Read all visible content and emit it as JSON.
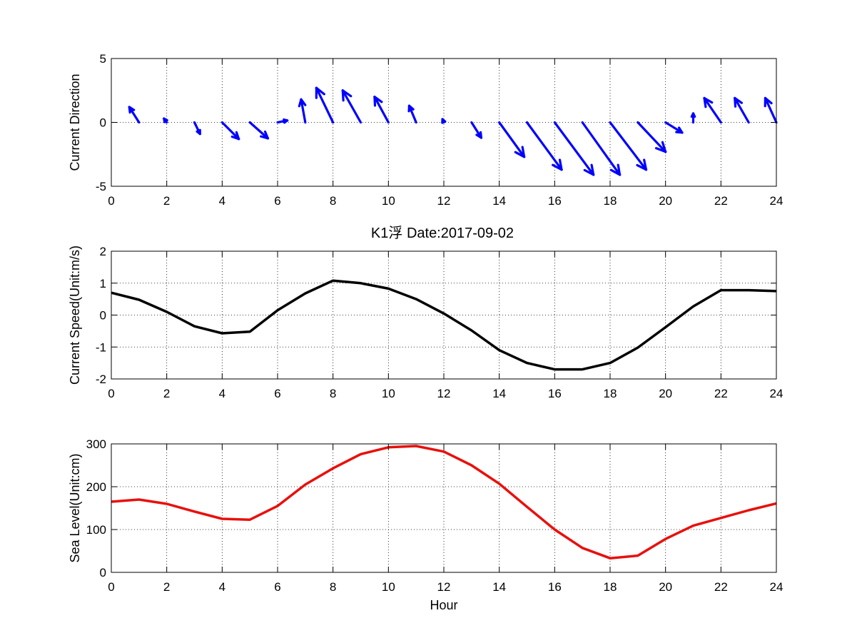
{
  "figure": {
    "title": "K1浮   Date:2017-09-02",
    "title_color": "#e8201c"
  },
  "chart_data": [
    {
      "type": "quiver",
      "ylabel": "Current Direction",
      "xlabel": "",
      "xlim": [
        0,
        24
      ],
      "ylim": [
        -5,
        5
      ],
      "xticks": [
        0,
        2,
        4,
        6,
        8,
        10,
        12,
        14,
        16,
        18,
        20,
        22,
        24
      ],
      "yticks": [
        -5,
        0,
        5
      ],
      "grid": true,
      "color": "#0000ff",
      "vectors": [
        {
          "x": 1,
          "u": -0.35,
          "v": 1.2
        },
        {
          "x": 2,
          "u": -0.1,
          "v": 0.3
        },
        {
          "x": 3,
          "u": 0.2,
          "v": -0.9
        },
        {
          "x": 4,
          "u": 0.6,
          "v": -1.3
        },
        {
          "x": 5,
          "u": 0.65,
          "v": -1.25
        },
        {
          "x": 6,
          "u": 0.35,
          "v": 0.15
        },
        {
          "x": 7,
          "u": -0.15,
          "v": 1.8
        },
        {
          "x": 8,
          "u": -0.6,
          "v": 2.7
        },
        {
          "x": 9,
          "u": -0.65,
          "v": 2.5
        },
        {
          "x": 10,
          "u": -0.5,
          "v": 2.0
        },
        {
          "x": 11,
          "u": -0.25,
          "v": 1.3
        },
        {
          "x": 12,
          "u": -0.05,
          "v": 0.25
        },
        {
          "x": 13,
          "u": 0.35,
          "v": -1.2
        },
        {
          "x": 14,
          "u": 0.9,
          "v": -2.7
        },
        {
          "x": 15,
          "u": 1.25,
          "v": -3.7
        },
        {
          "x": 16,
          "u": 1.4,
          "v": -4.1
        },
        {
          "x": 17,
          "u": 1.35,
          "v": -4.1
        },
        {
          "x": 18,
          "u": 1.3,
          "v": -3.7
        },
        {
          "x": 19,
          "u": 1.0,
          "v": -2.3
        },
        {
          "x": 20,
          "u": 0.6,
          "v": -0.8
        },
        {
          "x": 21,
          "u": 0.0,
          "v": 0.7
        },
        {
          "x": 22,
          "u": -0.6,
          "v": 1.9
        },
        {
          "x": 23,
          "u": -0.5,
          "v": 1.9
        },
        {
          "x": 24,
          "u": -0.4,
          "v": 1.9
        }
      ]
    },
    {
      "type": "line",
      "ylabel": "Current Speed(Unit:m/s)",
      "xlabel": "",
      "xlim": [
        0,
        24
      ],
      "ylim": [
        -2,
        2
      ],
      "xticks": [
        0,
        2,
        4,
        6,
        8,
        10,
        12,
        14,
        16,
        18,
        20,
        22,
        24
      ],
      "yticks": [
        -2,
        -1,
        0,
        1,
        2
      ],
      "grid": true,
      "color": "#000000",
      "x": [
        0,
        1,
        2,
        3,
        4,
        5,
        6,
        7,
        8,
        9,
        10,
        11,
        12,
        13,
        14,
        15,
        16,
        17,
        18,
        19,
        20,
        21,
        22,
        23,
        24
      ],
      "y": [
        0.7,
        0.48,
        0.1,
        -0.35,
        -0.57,
        -0.52,
        0.15,
        0.68,
        1.08,
        1.0,
        0.83,
        0.5,
        0.05,
        -0.48,
        -1.1,
        -1.5,
        -1.7,
        -1.7,
        -1.5,
        -1.02,
        -0.38,
        0.27,
        0.78,
        0.78,
        0.75
      ]
    },
    {
      "type": "line",
      "ylabel": "Sea Level(Unit:cm)",
      "xlabel": "Hour",
      "xlim": [
        0,
        24
      ],
      "ylim": [
        0,
        300
      ],
      "xticks": [
        0,
        2,
        4,
        6,
        8,
        10,
        12,
        14,
        16,
        18,
        20,
        22,
        24
      ],
      "yticks": [
        0,
        100,
        200,
        300
      ],
      "grid": true,
      "color": "#e8100c",
      "x": [
        0,
        1,
        2,
        3,
        4,
        5,
        6,
        7,
        8,
        9,
        10,
        11,
        12,
        13,
        14,
        15,
        16,
        17,
        18,
        19,
        20,
        21,
        22,
        23,
        24
      ],
      "y": [
        165,
        170,
        160,
        142,
        125,
        123,
        155,
        205,
        243,
        276,
        292,
        295,
        282,
        250,
        207,
        153,
        100,
        57,
        33,
        39,
        78,
        109,
        127,
        145,
        161
      ]
    }
  ]
}
